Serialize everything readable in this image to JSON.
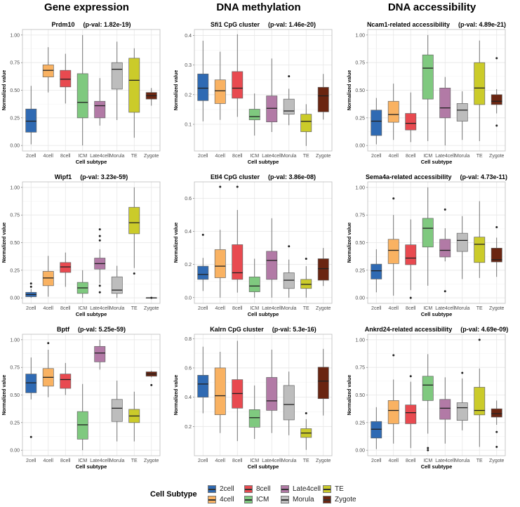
{
  "column_headers": [
    "Gene expression",
    "DNA methylation",
    "DNA accessibility"
  ],
  "colors": {
    "2cell": "#2F6AB3",
    "4cell": "#F9B262",
    "8cell": "#E84A50",
    "ICM": "#7FC97F",
    "Late4cell": "#B27AA6",
    "Morula": "#BDBDBD",
    "TE": "#CBCB2A",
    "Zygote": "#6A2511"
  },
  "legend": {
    "title": "Cell Subtype",
    "items": [
      "2cell",
      "4cell",
      "8cell",
      "ICM",
      "Late4cell",
      "Morula",
      "TE",
      "Zygote"
    ]
  },
  "chart_data": [
    {
      "type": "box",
      "title": "Prdm10",
      "pval": "(p-val: 1.82e-19)",
      "xlabel": "Cell subtype",
      "ylabel": "Normalized value",
      "ylim": [
        -0.05,
        1.05
      ],
      "ticks": [
        0,
        0.25,
        0.5,
        0.75,
        1
      ],
      "tick_labels": [
        "0.00",
        "0.25",
        "0.50",
        "0.75",
        "1.00"
      ],
      "categories": [
        "2cell",
        "4cell",
        "8cell",
        "ICM",
        "Late4cell",
        "Morula",
        "TE",
        "Zygote"
      ],
      "boxes": [
        [
          0.01,
          0.12,
          0.22,
          0.33,
          0.54,
          []
        ],
        [
          0.48,
          0.62,
          0.68,
          0.73,
          0.89,
          []
        ],
        [
          0.38,
          0.53,
          0.6,
          0.68,
          0.83,
          []
        ],
        [
          0,
          0.25,
          0.39,
          0.65,
          1.0,
          []
        ],
        [
          0.18,
          0.25,
          0.36,
          0.4,
          0.61,
          []
        ],
        [
          0.23,
          0.51,
          0.69,
          0.75,
          0.94,
          []
        ],
        [
          0.07,
          0.3,
          0.59,
          0.79,
          0.88,
          []
        ],
        [
          0.36,
          0.42,
          0.45,
          0.48,
          0.52,
          []
        ]
      ]
    },
    {
      "type": "box",
      "title": "Sfi1 CpG cluster",
      "pval": "(p-val: 1.46e-20)",
      "xlabel": "Cell subtype",
      "ylabel": "Normalized value",
      "ylim": [
        0.01,
        0.42
      ],
      "ticks": [
        0.1,
        0.2,
        0.3,
        0.4
      ],
      "tick_labels": [
        "0.1",
        "0.2",
        "0.3",
        "0.4"
      ],
      "categories": [
        "2cell",
        "4cell",
        "8cell",
        "ICM",
        "Late4cell",
        "Morula",
        "TE",
        "Zygote"
      ],
      "boxes": [
        [
          0.11,
          0.18,
          0.222,
          0.27,
          0.382,
          []
        ],
        [
          0.115,
          0.17,
          0.213,
          0.25,
          0.345,
          []
        ],
        [
          0.125,
          0.188,
          0.222,
          0.278,
          0.404,
          []
        ],
        [
          0.062,
          0.115,
          0.126,
          0.151,
          0.204,
          []
        ],
        [
          0.074,
          0.108,
          0.154,
          0.196,
          0.322,
          []
        ],
        [
          0.097,
          0.134,
          0.145,
          0.185,
          0.22,
          [
            0.262
          ]
        ],
        [
          0.027,
          0.075,
          0.11,
          0.134,
          0.168,
          []
        ],
        [
          0.116,
          0.142,
          0.196,
          0.225,
          0.27,
          []
        ]
      ]
    },
    {
      "type": "box",
      "title": "Ncam1-related accessibility",
      "pval": "(p-val: 4.89e-21)",
      "xlabel": "Cell subtype",
      "ylabel": "Normalized value",
      "ylim": [
        -0.05,
        1.05
      ],
      "ticks": [
        0,
        0.25,
        0.5,
        0.75,
        1
      ],
      "tick_labels": [
        "0.00",
        "0.25",
        "0.50",
        "0.75",
        "1.00"
      ],
      "categories": [
        "2cell",
        "4cell",
        "8cell",
        "ICM",
        "Late4cell",
        "Morula",
        "TE",
        "Zygote"
      ],
      "boxes": [
        [
          0.01,
          0.09,
          0.22,
          0.32,
          0.43,
          []
        ],
        [
          0.05,
          0.21,
          0.28,
          0.4,
          0.56,
          []
        ],
        [
          0.03,
          0.14,
          0.2,
          0.29,
          0.48,
          []
        ],
        [
          0.04,
          0.42,
          0.7,
          0.82,
          1.0,
          []
        ],
        [
          0,
          0.25,
          0.34,
          0.52,
          0.62,
          []
        ],
        [
          0.05,
          0.22,
          0.32,
          0.38,
          0.49,
          []
        ],
        [
          0.04,
          0.37,
          0.52,
          0.75,
          0.95,
          []
        ],
        [
          0.29,
          0.37,
          0.4,
          0.46,
          0.51,
          [
            0.79,
            0.18
          ]
        ]
      ]
    },
    {
      "type": "box",
      "title": "Wipf1",
      "pval": "(p-val: 3.23e-59)",
      "xlabel": "Cell subtype",
      "ylabel": "Normalized value",
      "ylim": [
        -0.05,
        1.05
      ],
      "ticks": [
        0,
        0.25,
        0.5,
        0.75,
        1
      ],
      "tick_labels": [
        "0.00",
        "0.25",
        "0.50",
        "0.75",
        "1.00"
      ],
      "categories": [
        "2cell",
        "4cell",
        "8cell",
        "ICM",
        "Late4cell",
        "Morula",
        "TE",
        "Zygote"
      ],
      "boxes": [
        [
          0,
          0.01,
          0.03,
          0.05,
          0.08,
          [
            0.1,
            0.13
          ]
        ],
        [
          0.01,
          0.11,
          0.18,
          0.24,
          0.38,
          []
        ],
        [
          0.1,
          0.23,
          0.28,
          0.32,
          0.41,
          []
        ],
        [
          0,
          0.04,
          0.09,
          0.14,
          0.25,
          []
        ],
        [
          0.13,
          0.26,
          0.31,
          0.36,
          0.44,
          [
            0.62,
            0.56,
            0.52,
            0.11,
            0.05
          ]
        ],
        [
          0,
          0.04,
          0.07,
          0.19,
          0.29,
          []
        ],
        [
          0.27,
          0.58,
          0.68,
          0.82,
          1.0,
          [
            0.22
          ]
        ],
        [
          0,
          0,
          0,
          0,
          0,
          [
            0.0
          ]
        ]
      ]
    },
    {
      "type": "box",
      "title": "Etl4 CpG cluster",
      "pval": "(p-val: 3.86e-08)",
      "xlabel": "Cell subtype",
      "ylabel": "Normalized value",
      "ylim": [
        -0.035,
        0.7
      ],
      "ticks": [
        0,
        0.2,
        0.4,
        0.6
      ],
      "tick_labels": [
        "0.0",
        "0.2",
        "0.4",
        "0.6"
      ],
      "categories": [
        "2cell",
        "4cell",
        "8cell",
        "ICM",
        "Late4cell",
        "Morula",
        "TE",
        "Zygote"
      ],
      "boxes": [
        [
          0.04,
          0.11,
          0.14,
          0.19,
          0.24,
          [
            0.38
          ]
        ],
        [
          0,
          0.12,
          0.19,
          0.29,
          0.41,
          [
            0.67
          ]
        ],
        [
          0.03,
          0.11,
          0.15,
          0.32,
          0.53,
          [
            0.67
          ]
        ],
        [
          0,
          0.035,
          0.07,
          0.125,
          0.235,
          []
        ],
        [
          0,
          0.11,
          0.225,
          0.28,
          0.48,
          []
        ],
        [
          0,
          0.055,
          0.105,
          0.15,
          0.23,
          [
            0.31
          ]
        ],
        [
          0,
          0.055,
          0.08,
          0.11,
          0.19,
          [
            0.235
          ]
        ],
        [
          0.07,
          0.105,
          0.175,
          0.235,
          0.3,
          []
        ]
      ]
    },
    {
      "type": "box",
      "title": "Sema4a-related accessibility",
      "pval": "(p-val: 4.73e-11)",
      "xlabel": "Cell subtype",
      "ylabel": "Normalized value",
      "ylim": [
        -0.05,
        1.05
      ],
      "ticks": [
        0,
        0.25,
        0.5,
        0.75,
        1
      ],
      "tick_labels": [
        "0.00",
        "0.25",
        "0.50",
        "0.75",
        "1.00"
      ],
      "categories": [
        "2cell",
        "4cell",
        "8cell",
        "ICM",
        "Late4cell",
        "Morula",
        "TE",
        "Zygote"
      ],
      "boxes": [
        [
          0.05,
          0.17,
          0.245,
          0.305,
          0.44,
          []
        ],
        [
          0.02,
          0.31,
          0.43,
          0.53,
          0.75,
          [
            0.9
          ]
        ],
        [
          0.07,
          0.3,
          0.36,
          0.48,
          0.71,
          [
            0.0
          ]
        ],
        [
          0.11,
          0.46,
          0.63,
          0.72,
          1.0,
          []
        ],
        [
          0.33,
          0.37,
          0.43,
          0.53,
          0.63,
          [
            0.8,
            0.06
          ]
        ],
        [
          0.17,
          0.42,
          0.52,
          0.585,
          0.74,
          []
        ],
        [
          0.18,
          0.32,
          0.485,
          0.55,
          0.875,
          []
        ],
        [
          0.19,
          0.325,
          0.345,
          0.45,
          0.545,
          [
            0.64
          ]
        ]
      ]
    },
    {
      "type": "box",
      "title": "Bptf",
      "pval": "(p-val: 5.25e-59)",
      "xlabel": "Cell subtype",
      "ylabel": "Normalized value",
      "ylim": [
        -0.05,
        1.05
      ],
      "ticks": [
        0,
        0.25,
        0.5,
        0.75,
        1
      ],
      "tick_labels": [
        "0.00",
        "0.25",
        "0.50",
        "0.75",
        "1.00"
      ],
      "categories": [
        "2cell",
        "4cell",
        "8cell",
        "ICM",
        "Late4cell",
        "Morula",
        "TE",
        "Zygote"
      ],
      "boxes": [
        [
          0.46,
          0.52,
          0.61,
          0.69,
          0.84,
          [
            0.12
          ]
        ],
        [
          0.48,
          0.58,
          0.66,
          0.74,
          0.91,
          [
            0.97
          ]
        ],
        [
          0.5,
          0.56,
          0.64,
          0.69,
          0.79,
          []
        ],
        [
          0,
          0.1,
          0.23,
          0.35,
          0.6,
          []
        ],
        [
          0.73,
          0.8,
          0.88,
          0.94,
          1.0,
          []
        ],
        [
          0.08,
          0.26,
          0.38,
          0.46,
          0.63,
          []
        ],
        [
          0.08,
          0.25,
          0.31,
          0.37,
          0.53,
          []
        ],
        [
          0.66,
          0.67,
          0.69,
          0.71,
          0.72,
          [
            0.59
          ]
        ]
      ]
    },
    {
      "type": "box",
      "title": "Kalrn CpG cluster",
      "pval": "(p-val: 5.3e-16)",
      "xlabel": "Cell subtype",
      "ylabel": "Normalized value",
      "ylim": [
        0.0,
        0.83
      ],
      "ticks": [
        0.2,
        0.4,
        0.6,
        0.8
      ],
      "tick_labels": [
        "0.2",
        "0.4",
        "0.6",
        "0.8"
      ],
      "categories": [
        "2cell",
        "4cell",
        "8cell",
        "ICM",
        "Late4cell",
        "Morula",
        "TE",
        "Zygote"
      ],
      "boxes": [
        [
          0.29,
          0.4,
          0.49,
          0.55,
          0.745,
          []
        ],
        [
          0.155,
          0.28,
          0.41,
          0.6,
          0.71,
          []
        ],
        [
          0.1,
          0.325,
          0.425,
          0.52,
          0.785,
          []
        ],
        [
          0.115,
          0.195,
          0.26,
          0.315,
          0.48,
          []
        ],
        [
          0.155,
          0.31,
          0.375,
          0.535,
          0.725,
          []
        ],
        [
          0.14,
          0.245,
          0.35,
          0.48,
          0.575,
          []
        ],
        [
          0.04,
          0.125,
          0.155,
          0.185,
          0.25,
          [
            0.29
          ]
        ],
        [
          0.275,
          0.39,
          0.51,
          0.605,
          0.73,
          []
        ]
      ]
    },
    {
      "type": "box",
      "title": "Ankrd24-related accessibility",
      "pval": "(p-val: 4.69e-09)",
      "xlabel": "Cell subtype",
      "ylabel": "Normalized value",
      "ylim": [
        -0.05,
        1.05
      ],
      "ticks": [
        0,
        0.25,
        0.5,
        0.75,
        1
      ],
      "tick_labels": [
        "0.00",
        "0.25",
        "0.50",
        "0.75",
        "1.00"
      ],
      "categories": [
        "2cell",
        "4cell",
        "8cell",
        "ICM",
        "Late4cell",
        "Morula",
        "TE",
        "Zygote"
      ],
      "boxes": [
        [
          0.01,
          0.11,
          0.19,
          0.26,
          0.39,
          []
        ],
        [
          0.06,
          0.24,
          0.36,
          0.45,
          0.64,
          [
            0.86
          ]
        ],
        [
          0.02,
          0.24,
          0.34,
          0.41,
          0.62,
          [
            0.67
          ]
        ],
        [
          0.15,
          0.45,
          0.59,
          0.67,
          0.87,
          [
            0.02,
            0.0
          ]
        ],
        [
          0.06,
          0.28,
          0.38,
          0.46,
          0.66,
          []
        ],
        [
          0.18,
          0.27,
          0.385,
          0.43,
          0.65,
          [
            0.7
          ]
        ],
        [
          0.03,
          0.32,
          0.36,
          0.57,
          0.74,
          [
            1.0
          ]
        ],
        [
          0.23,
          0.3,
          0.33,
          0.375,
          0.45,
          [
            0.165,
            0.03
          ]
        ]
      ]
    }
  ]
}
